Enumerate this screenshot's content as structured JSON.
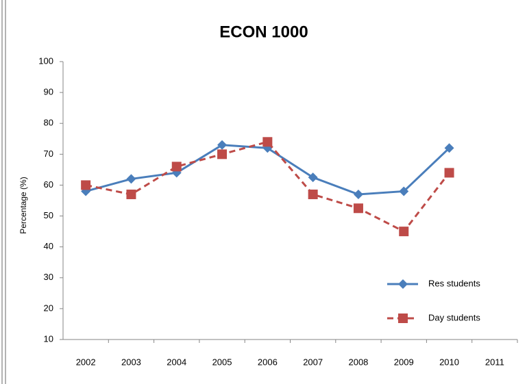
{
  "chart_data": {
    "type": "line",
    "title": "ECON 1000",
    "y_label": "Percentage (%)",
    "categories": [
      "2002",
      "2003",
      "2004",
      "2005",
      "2006",
      "2007",
      "2008",
      "2009",
      "2010",
      "2011"
    ],
    "series": [
      {
        "name": "Res students",
        "color": "#4a7ebb",
        "marker": "diamond",
        "dashed": false,
        "values": [
          58,
          62,
          64,
          73,
          72,
          62.5,
          57,
          58,
          72,
          null
        ]
      },
      {
        "name": "Day students",
        "color": "#be4b48",
        "marker": "square",
        "dashed": true,
        "values": [
          60,
          57,
          66,
          70,
          74,
          57,
          52.5,
          45,
          64,
          null
        ]
      }
    ],
    "ylim": [
      10,
      100
    ],
    "yticks": [
      10,
      20,
      30,
      40,
      50,
      60,
      70,
      80,
      90,
      100
    ],
    "grid": false,
    "legend": "lower right"
  }
}
